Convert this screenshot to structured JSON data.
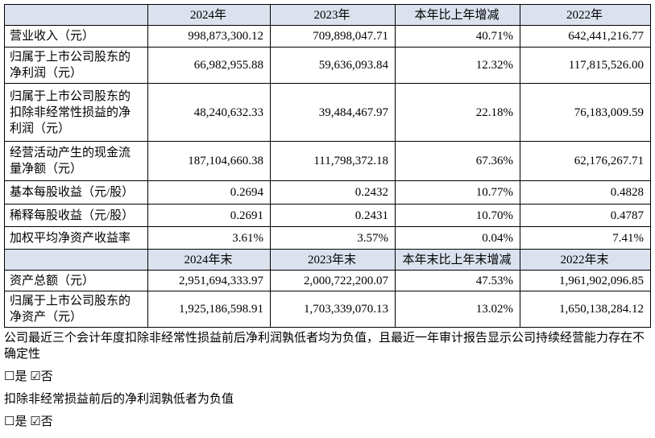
{
  "table": {
    "header": [
      "2024年",
      "2023年",
      "本年比上年增减",
      "2022年"
    ],
    "rows": [
      [
        "营业收入（元）",
        "998,873,300.12",
        "709,898,047.71",
        "40.71%",
        "642,441,216.77"
      ],
      [
        "归属于上市公司股东的净利润（元）",
        "66,982,955.88",
        "59,636,093.84",
        "12.32%",
        "117,815,526.00"
      ],
      [
        "归属于上市公司股东的扣除非经常性损益的净利润（元）",
        "48,240,632.33",
        "39,484,467.97",
        "22.18%",
        "76,183,009.59"
      ],
      [
        "经营活动产生的现金流量净额（元）",
        "187,104,660.38",
        "111,798,372.18",
        "67.36%",
        "62,176,267.71"
      ],
      [
        "基本每股收益（元/股）",
        "0.2694",
        "0.2432",
        "10.77%",
        "0.4828"
      ],
      [
        "稀释每股收益（元/股）",
        "0.2691",
        "0.2431",
        "10.70%",
        "0.4787"
      ],
      [
        "加权平均净资产收益率",
        "3.61%",
        "3.57%",
        "0.04%",
        "7.41%"
      ]
    ],
    "header2": [
      "2024年末",
      "2023年末",
      "本年末比上年末增减",
      "2022年末"
    ],
    "rows2": [
      [
        "资产总额（元）",
        "2,951,694,333.97",
        "2,000,722,200.07",
        "47.53%",
        "1,961,902,096.85"
      ],
      [
        "归属于上市公司股东的净资产（元）",
        "1,925,186,598.91",
        "1,703,339,070.13",
        "13.02%",
        "1,650,138,284.12"
      ]
    ]
  },
  "notes": [
    "公司最近三个会计年度扣除非经常性损益前后净利润孰低者均为负值，且最近一年审计报告显示公司持续经营能力存在不确定性",
    "☐是 ☑否",
    "扣除非经常损益前后的净利润孰低者为负值",
    "☐是 ☑否"
  ]
}
